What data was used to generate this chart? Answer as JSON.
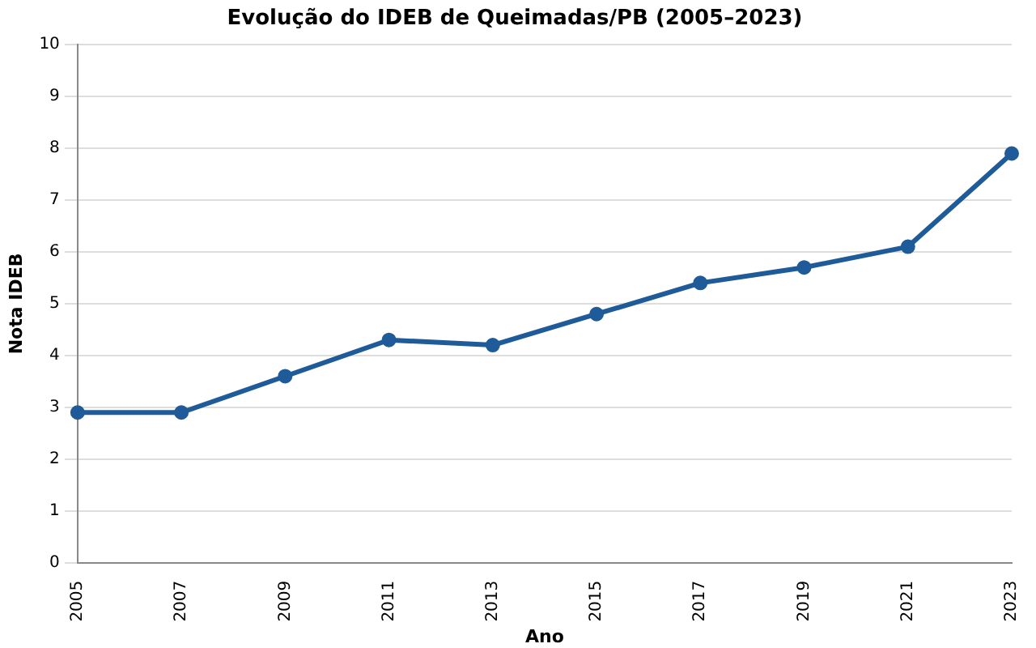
{
  "chart_data": {
    "type": "line",
    "title": "Evolução do IDEB de Queimadas/PB (2005–2023)",
    "xlabel": "Ano",
    "ylabel": "Nota IDEB",
    "categories": [
      "2005",
      "2007",
      "2009",
      "2011",
      "2013",
      "2015",
      "2017",
      "2019",
      "2021",
      "2023"
    ],
    "series": [
      {
        "color": "#1f5b99",
        "values": [
          2.9,
          2.9,
          3.6,
          4.3,
          4.2,
          4.8,
          5.4,
          5.7,
          6.1,
          7.9
        ]
      }
    ],
    "ylim": [
      0,
      10
    ],
    "yticks": [
      0,
      1,
      2,
      3,
      4,
      5,
      6,
      7,
      8,
      9,
      10
    ],
    "grid": "y",
    "marker": "circle",
    "line_style": "solid"
  }
}
